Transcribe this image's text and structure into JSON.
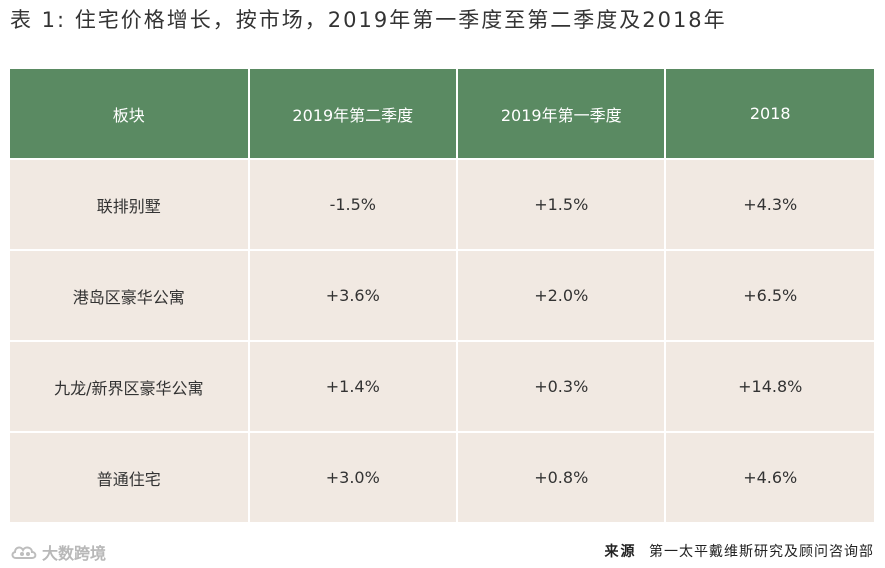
{
  "title": "表 1: 住宅价格增长，按市场，2019年第一季度至第二季度及2018年",
  "table": {
    "headers": [
      "板块",
      "2019年第二季度",
      "2019年第一季度",
      "2018"
    ],
    "rows": [
      [
        "联排别墅",
        "-1.5%",
        "+1.5%",
        "+4.3%"
      ],
      [
        "港岛区豪华公寓",
        "+3.6%",
        "+2.0%",
        "+6.5%"
      ],
      [
        "九龙/新界区豪华公寓",
        "+1.4%",
        "+0.3%",
        "+14.8%"
      ],
      [
        "普通住宅",
        "+3.0%",
        "+0.8%",
        "+4.6%"
      ]
    ]
  },
  "colors": {
    "header_bg": "#5a8a62",
    "row_bg": "#f1e9e2"
  },
  "footer": {
    "watermark": "大数跨境",
    "watermark_icon": "cloud-logo-icon",
    "source_label": "来源",
    "source_text": "第一太平戴维斯研究及顾问咨询部"
  }
}
